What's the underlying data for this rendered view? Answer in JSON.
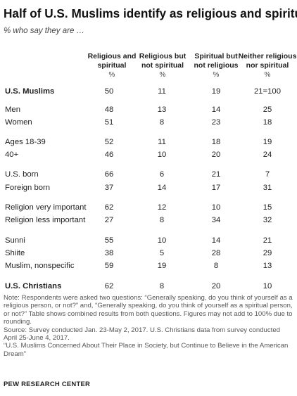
{
  "title": "Half of U.S. Muslims identify as religious and spiritual",
  "subtitle": "% who say they are …",
  "columns": [
    {
      "label": "Religious and spiritual",
      "unit": "%"
    },
    {
      "label": "Religious but not spiritual",
      "unit": "%"
    },
    {
      "label": "Spiritual but not religious",
      "unit": "%"
    },
    {
      "label": "Neither religious nor spiritual",
      "unit": "%"
    }
  ],
  "chart_data": {
    "type": "table",
    "columns": [
      "Religious and spiritual",
      "Religious but not spiritual",
      "Spiritual but not religious",
      "Neither religious nor spiritual"
    ],
    "rows": [
      {
        "label": "U.S. Muslims",
        "values": [
          "50",
          "11",
          "19",
          "21=100"
        ],
        "bold": true
      },
      {
        "label": "Men",
        "values": [
          "48",
          "13",
          "14",
          "25"
        ]
      },
      {
        "label": "Women",
        "values": [
          "51",
          "8",
          "23",
          "18"
        ]
      },
      {
        "label": "Ages 18-39",
        "values": [
          "52",
          "11",
          "18",
          "19"
        ]
      },
      {
        "label": "40+",
        "values": [
          "46",
          "10",
          "20",
          "24"
        ]
      },
      {
        "label": "U.S. born",
        "values": [
          "66",
          "6",
          "21",
          "7"
        ]
      },
      {
        "label": "Foreign born",
        "values": [
          "37",
          "14",
          "17",
          "31"
        ]
      },
      {
        "label": "Religion very important",
        "values": [
          "62",
          "12",
          "10",
          "15"
        ]
      },
      {
        "label": "Religion less important",
        "values": [
          "27",
          "8",
          "34",
          "32"
        ]
      },
      {
        "label": "Sunni",
        "values": [
          "55",
          "10",
          "14",
          "21"
        ]
      },
      {
        "label": "Shiite",
        "values": [
          "38",
          "5",
          "28",
          "29"
        ]
      },
      {
        "label": "Muslim, nonspecific",
        "values": [
          "59",
          "19",
          "8",
          "13"
        ]
      },
      {
        "label": "U.S. Christians",
        "values": [
          "62",
          "8",
          "20",
          "10"
        ],
        "bold": true
      }
    ]
  },
  "notes": {
    "note": "Note: Respondents were asked two questions: “Generally speaking, do you think of yourself as a religious person, or not?” and, “Generally speaking, do you think of yourself as a spiritual person, or not?” Table shows combined results from both questions. Figures may not add to 100% due to rounding.",
    "source": "Source: Survey conducted Jan. 23-May 2, 2017. U.S. Christians data from survey conducted April 25-June 4, 2017.",
    "report": "“U.S. Muslims Concerned About Their Place in Society, but Continue to Believe in the American Dream”",
    "brand": "PEW RESEARCH CENTER"
  }
}
